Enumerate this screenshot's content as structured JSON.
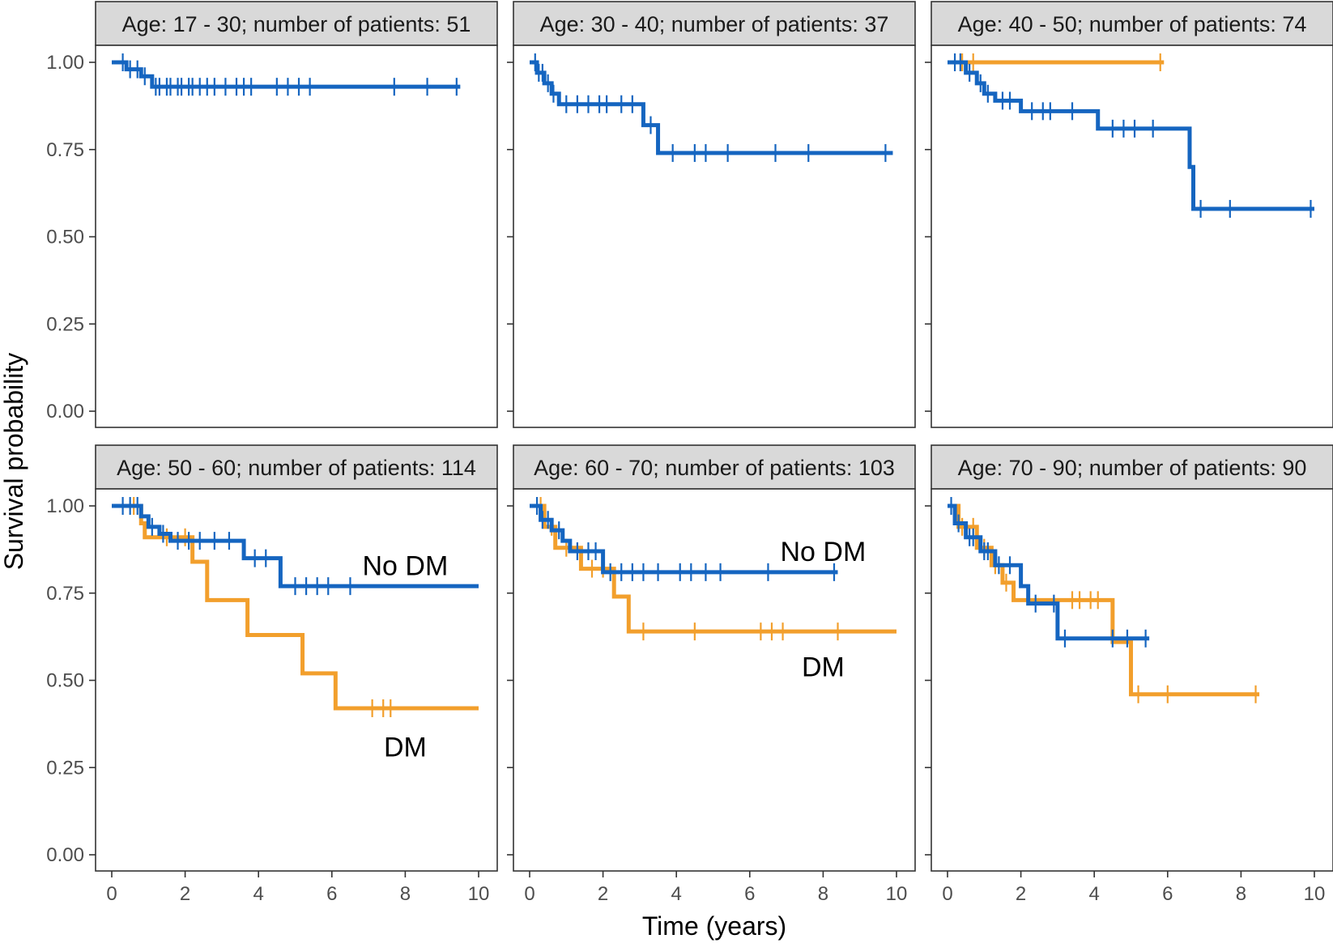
{
  "figure": {
    "xlabel": "Time (years)",
    "ylabel": "Survival probability",
    "x_ticks": [
      "0",
      "2",
      "4",
      "6",
      "8",
      "10"
    ],
    "y_ticks": [
      "1.00",
      "0.75",
      "0.50",
      "0.25",
      "0.00"
    ]
  },
  "colors": {
    "dm": "#F29F2C",
    "no_dm": "#1565C0",
    "strip_bg": "#D9D9D9"
  },
  "chart_data": {
    "type": "line",
    "subtype": "kaplan-meier step curves, faceted",
    "xlim": [
      0,
      10
    ],
    "ylim": [
      0,
      1
    ],
    "series_names": [
      "No DM",
      "DM"
    ],
    "panels": [
      {
        "title": "Age: 17 - 30; number of patients: 51",
        "annotations": [],
        "series": [
          {
            "name": "No DM",
            "color_key": "no_dm",
            "steps": [
              [
                0,
                1.0
              ],
              [
                0.4,
                0.98
              ],
              [
                0.8,
                0.96
              ],
              [
                1.1,
                0.93
              ],
              [
                9.5,
                0.93
              ]
            ],
            "censor": [
              0.3,
              0.5,
              0.7,
              0.9,
              1.2,
              1.3,
              1.5,
              1.6,
              1.8,
              1.9,
              2.1,
              2.2,
              2.4,
              2.6,
              2.8,
              3.1,
              3.4,
              3.6,
              3.8,
              4.5,
              4.8,
              5.1,
              5.4,
              7.7,
              8.6,
              9.4
            ]
          }
        ]
      },
      {
        "title": "Age: 30 - 40; number of patients: 37",
        "annotations": [],
        "series": [
          {
            "name": "No DM",
            "color_key": "no_dm",
            "steps": [
              [
                0,
                1.0
              ],
              [
                0.2,
                0.97
              ],
              [
                0.4,
                0.94
              ],
              [
                0.6,
                0.91
              ],
              [
                0.8,
                0.88
              ],
              [
                3.1,
                0.82
              ],
              [
                3.5,
                0.74
              ],
              [
                9.9,
                0.74
              ]
            ],
            "censor": [
              0.15,
              0.25,
              0.35,
              0.5,
              0.65,
              1.0,
              1.3,
              1.6,
              1.9,
              2.1,
              2.5,
              2.8,
              3.3,
              3.9,
              4.5,
              4.8,
              5.4,
              6.7,
              7.6,
              9.7
            ]
          }
        ]
      },
      {
        "title": "Age: 40 - 50; number of patients: 74",
        "annotations": [],
        "series": [
          {
            "name": "DM",
            "color_key": "dm",
            "steps": [
              [
                0,
                1.0
              ],
              [
                5.9,
                1.0
              ]
            ],
            "censor": [
              0.4,
              0.7,
              5.8
            ]
          },
          {
            "name": "No DM",
            "color_key": "no_dm",
            "steps": [
              [
                0,
                1.0
              ],
              [
                0.5,
                0.97
              ],
              [
                0.8,
                0.94
              ],
              [
                1.0,
                0.91
              ],
              [
                1.3,
                0.89
              ],
              [
                2.0,
                0.86
              ],
              [
                4.1,
                0.81
              ],
              [
                6.6,
                0.7
              ],
              [
                6.7,
                0.58
              ],
              [
                10.0,
                0.58
              ]
            ],
            "censor": [
              0.2,
              0.35,
              0.6,
              0.9,
              1.1,
              1.5,
              1.7,
              2.3,
              2.6,
              2.8,
              3.4,
              4.5,
              4.8,
              5.1,
              5.6,
              6.9,
              7.7,
              9.9
            ]
          }
        ]
      },
      {
        "title": "Age: 50 - 60; number of patients: 114",
        "annotations": [
          {
            "text": "No DM",
            "x": 8.0,
            "y": 0.83
          },
          {
            "text": "DM",
            "x": 8.0,
            "y": 0.31
          }
        ],
        "series": [
          {
            "name": "DM",
            "color_key": "dm",
            "steps": [
              [
                0,
                1.0
              ],
              [
                0.8,
                0.95
              ],
              [
                0.9,
                0.91
              ],
              [
                2.2,
                0.84
              ],
              [
                2.6,
                0.73
              ],
              [
                3.7,
                0.63
              ],
              [
                5.2,
                0.52
              ],
              [
                6.1,
                0.42
              ],
              [
                10.0,
                0.42
              ]
            ],
            "censor": [
              0.6,
              1.5,
              2.0,
              7.1,
              7.4,
              7.6
            ]
          },
          {
            "name": "No DM",
            "color_key": "no_dm",
            "steps": [
              [
                0,
                1.0
              ],
              [
                0.8,
                0.97
              ],
              [
                1.0,
                0.94
              ],
              [
                1.3,
                0.92
              ],
              [
                1.6,
                0.9
              ],
              [
                3.6,
                0.85
              ],
              [
                4.6,
                0.77
              ],
              [
                10.0,
                0.77
              ]
            ],
            "censor": [
              0.3,
              0.5,
              0.7,
              1.1,
              1.4,
              1.8,
              2.1,
              2.4,
              2.8,
              3.2,
              3.9,
              4.2,
              5.0,
              5.3,
              5.6,
              5.9,
              6.5
            ]
          }
        ]
      },
      {
        "title": "Age: 60 - 70; number of patients: 103",
        "annotations": [
          {
            "text": "No DM",
            "x": 8.0,
            "y": 0.87
          },
          {
            "text": "DM",
            "x": 8.0,
            "y": 0.54
          }
        ],
        "series": [
          {
            "name": "DM",
            "color_key": "dm",
            "steps": [
              [
                0,
                1.0
              ],
              [
                0.4,
                0.94
              ],
              [
                0.7,
                0.88
              ],
              [
                1.4,
                0.82
              ],
              [
                2.3,
                0.74
              ],
              [
                2.7,
                0.64
              ],
              [
                10.0,
                0.64
              ]
            ],
            "censor": [
              0.3,
              0.6,
              1.0,
              1.7,
              2.0,
              3.1,
              4.5,
              6.3,
              6.6,
              6.9,
              8.4
            ]
          },
          {
            "name": "No DM",
            "color_key": "no_dm",
            "steps": [
              [
                0,
                1.0
              ],
              [
                0.3,
                0.96
              ],
              [
                0.6,
                0.93
              ],
              [
                0.9,
                0.9
              ],
              [
                1.1,
                0.87
              ],
              [
                2.0,
                0.81
              ],
              [
                8.4,
                0.81
              ]
            ],
            "censor": [
              0.2,
              0.35,
              0.5,
              0.8,
              1.3,
              1.6,
              1.8,
              2.2,
              2.5,
              2.8,
              3.1,
              3.5,
              4.1,
              4.4,
              4.8,
              5.2,
              6.5,
              8.3
            ]
          }
        ]
      },
      {
        "title": "Age: 70 - 90; number of patients: 90",
        "annotations": [],
        "series": [
          {
            "name": "DM",
            "color_key": "dm",
            "steps": [
              [
                0,
                1.0
              ],
              [
                0.3,
                0.94
              ],
              [
                0.8,
                0.88
              ],
              [
                1.2,
                0.83
              ],
              [
                1.5,
                0.78
              ],
              [
                1.8,
                0.73
              ],
              [
                4.5,
                0.61
              ],
              [
                5.0,
                0.46
              ],
              [
                8.5,
                0.46
              ]
            ],
            "censor": [
              0.4,
              0.7,
              1.0,
              1.3,
              1.6,
              3.4,
              3.6,
              3.9,
              4.1,
              5.2,
              6.0,
              8.4
            ]
          },
          {
            "name": "No DM",
            "color_key": "no_dm",
            "steps": [
              [
                0,
                1.0
              ],
              [
                0.2,
                0.95
              ],
              [
                0.5,
                0.91
              ],
              [
                0.9,
                0.87
              ],
              [
                1.3,
                0.83
              ],
              [
                2.0,
                0.77
              ],
              [
                2.2,
                0.72
              ],
              [
                3.0,
                0.62
              ],
              [
                5.5,
                0.62
              ]
            ],
            "censor": [
              0.1,
              0.3,
              0.6,
              0.7,
              1.0,
              1.1,
              1.4,
              1.7,
              2.4,
              2.9,
              3.2,
              4.5,
              4.9,
              5.4
            ]
          }
        ]
      }
    ]
  }
}
